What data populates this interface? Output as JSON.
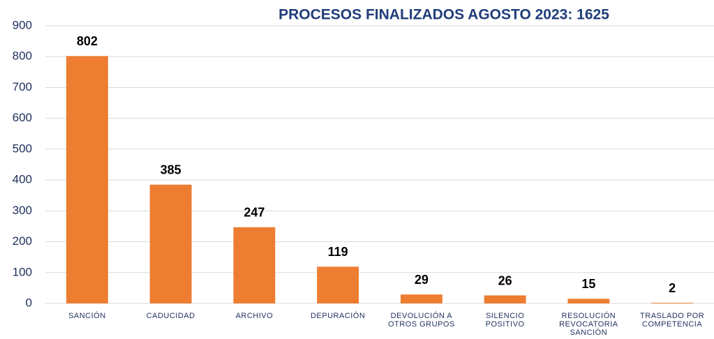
{
  "chart_data": {
    "type": "bar",
    "title": "PROCESOS FINALIZADOS AGOSTO 2023: 1625",
    "categories": [
      "SANCIÓN",
      "CADUCIDAD",
      "ARCHIVO",
      "DEPURACIÓN",
      "DEVOLUCIÓN A OTROS GRUPOS",
      "SILENCIO POSITIVO",
      "RESOLUCIÓN REVOCATORIA SANCIÓN",
      "TRASLADO POR COMPETENCIA"
    ],
    "values": [
      802,
      385,
      247,
      119,
      29,
      26,
      15,
      2
    ],
    "color": "#ed7d31",
    "ylim": [
      0,
      900
    ],
    "yticks": [
      0,
      100,
      200,
      300,
      400,
      500,
      600,
      700,
      800,
      900
    ],
    "grid": true
  }
}
